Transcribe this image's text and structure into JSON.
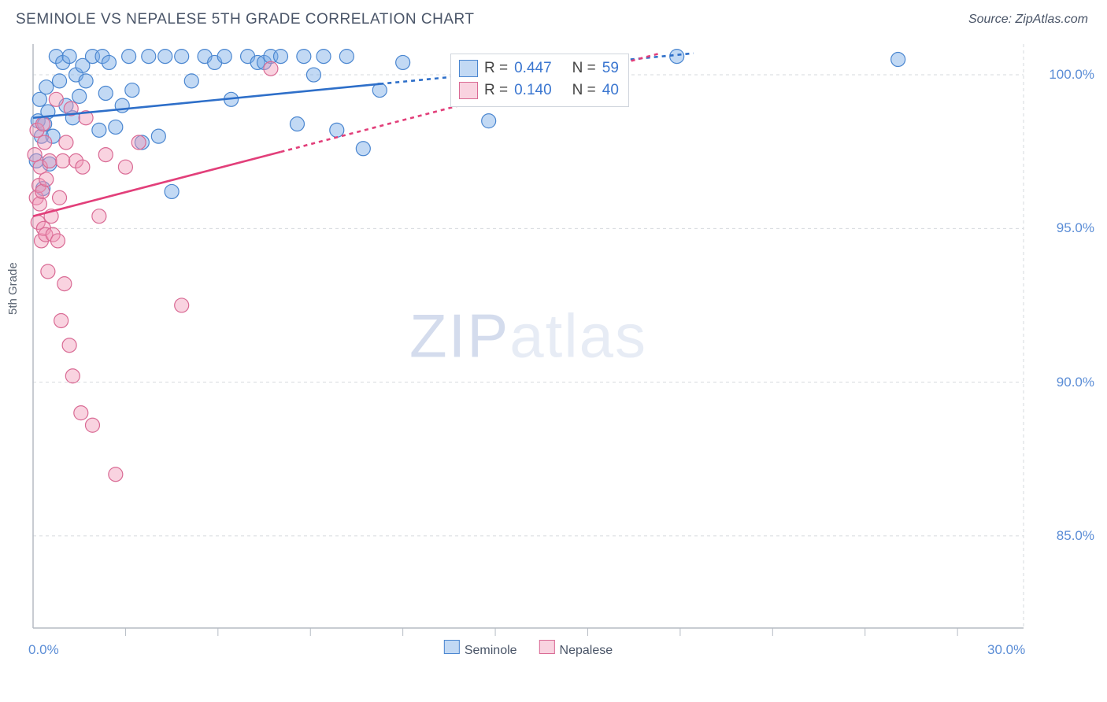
{
  "header": {
    "title": "SEMINOLE VS NEPALESE 5TH GRADE CORRELATION CHART",
    "source": "Source: ZipAtlas.com"
  },
  "watermark": {
    "zip": "ZIP",
    "atlas": "atlas"
  },
  "chart": {
    "type": "scatter",
    "ylabel": "5th Grade",
    "xlim": [
      0,
      30
    ],
    "ylim": [
      82,
      101
    ],
    "x_ticks_major": [
      0,
      30
    ],
    "x_ticks_minor": [
      2.8,
      5.6,
      8.4,
      11.2,
      14.0,
      16.8,
      19.6,
      22.4,
      25.2,
      28.0
    ],
    "x_tick_labels": {
      "0": "0.0%",
      "30": "30.0%"
    },
    "y_ticks": [
      85,
      90,
      95,
      100
    ],
    "y_tick_labels": {
      "85": "85.0%",
      "90": "90.0%",
      "95": "95.0%",
      "100": "100.0%"
    },
    "background_color": "#ffffff",
    "grid_color": "#d6dade",
    "axis_color": "#b6bcc4",
    "marker_radius": 9,
    "marker_stroke_width": 1.2,
    "trend_line_width": 2.6,
    "series": [
      {
        "name": "Seminole",
        "fill": "rgba(120,170,230,0.45)",
        "stroke": "#4a86d0",
        "trend_color": "#2e6fc9",
        "trend_dash_after_x": 10.5,
        "trend": {
          "x1": 0,
          "y1": 98.6,
          "x2": 20,
          "y2": 100.7
        },
        "R": "0.447",
        "N": "59",
        "points": [
          [
            0.1,
            97.2
          ],
          [
            0.15,
            98.5
          ],
          [
            0.2,
            99.2
          ],
          [
            0.25,
            98.0
          ],
          [
            0.3,
            96.3
          ],
          [
            0.35,
            98.4
          ],
          [
            0.4,
            99.6
          ],
          [
            0.45,
            98.8
          ],
          [
            0.5,
            97.1
          ],
          [
            0.6,
            98.0
          ],
          [
            0.7,
            100.6
          ],
          [
            0.8,
            99.8
          ],
          [
            0.9,
            100.4
          ],
          [
            1.0,
            99.0
          ],
          [
            1.1,
            100.6
          ],
          [
            1.2,
            98.6
          ],
          [
            1.3,
            100.0
          ],
          [
            1.4,
            99.3
          ],
          [
            1.5,
            100.3
          ],
          [
            1.6,
            99.8
          ],
          [
            1.8,
            100.6
          ],
          [
            2.0,
            98.2
          ],
          [
            2.1,
            100.6
          ],
          [
            2.2,
            99.4
          ],
          [
            2.3,
            100.4
          ],
          [
            2.5,
            98.3
          ],
          [
            2.7,
            99.0
          ],
          [
            2.9,
            100.6
          ],
          [
            3.0,
            99.5
          ],
          [
            3.3,
            97.8
          ],
          [
            3.5,
            100.6
          ],
          [
            3.8,
            98.0
          ],
          [
            4.0,
            100.6
          ],
          [
            4.2,
            96.2
          ],
          [
            4.5,
            100.6
          ],
          [
            4.8,
            99.8
          ],
          [
            5.2,
            100.6
          ],
          [
            5.5,
            100.4
          ],
          [
            5.8,
            100.6
          ],
          [
            6.0,
            99.2
          ],
          [
            6.5,
            100.6
          ],
          [
            6.8,
            100.4
          ],
          [
            7.0,
            100.4
          ],
          [
            7.2,
            100.6
          ],
          [
            7.5,
            100.6
          ],
          [
            8.0,
            98.4
          ],
          [
            8.2,
            100.6
          ],
          [
            8.5,
            100.0
          ],
          [
            8.8,
            100.6
          ],
          [
            9.2,
            98.2
          ],
          [
            9.5,
            100.6
          ],
          [
            10.0,
            97.6
          ],
          [
            10.5,
            99.5
          ],
          [
            11.2,
            100.4
          ],
          [
            13.0,
            100.2
          ],
          [
            13.8,
            98.5
          ],
          [
            14.3,
            100.2
          ],
          [
            19.5,
            100.6
          ],
          [
            26.2,
            100.5
          ]
        ]
      },
      {
        "name": "Nepalese",
        "fill": "rgba(240,150,180,0.42)",
        "stroke": "#d96a94",
        "trend_color": "#e23f7a",
        "trend_dash_after_x": 7.5,
        "trend": {
          "x1": 0,
          "y1": 95.4,
          "x2": 19,
          "y2": 100.7
        },
        "R": "0.140",
        "N": "40",
        "points": [
          [
            0.05,
            97.4
          ],
          [
            0.1,
            96.0
          ],
          [
            0.12,
            98.2
          ],
          [
            0.15,
            95.2
          ],
          [
            0.18,
            96.4
          ],
          [
            0.2,
            95.8
          ],
          [
            0.22,
            97.0
          ],
          [
            0.25,
            94.6
          ],
          [
            0.28,
            96.2
          ],
          [
            0.3,
            98.4
          ],
          [
            0.32,
            95.0
          ],
          [
            0.35,
            97.8
          ],
          [
            0.38,
            94.8
          ],
          [
            0.4,
            96.6
          ],
          [
            0.45,
            93.6
          ],
          [
            0.5,
            97.2
          ],
          [
            0.55,
            95.4
          ],
          [
            0.6,
            94.8
          ],
          [
            0.7,
            99.2
          ],
          [
            0.75,
            94.6
          ],
          [
            0.8,
            96.0
          ],
          [
            0.85,
            92.0
          ],
          [
            0.9,
            97.2
          ],
          [
            0.95,
            93.2
          ],
          [
            1.0,
            97.8
          ],
          [
            1.1,
            91.2
          ],
          [
            1.15,
            98.9
          ],
          [
            1.2,
            90.2
          ],
          [
            1.3,
            97.2
          ],
          [
            1.45,
            89.0
          ],
          [
            1.5,
            97.0
          ],
          [
            1.6,
            98.6
          ],
          [
            1.8,
            88.6
          ],
          [
            2.0,
            95.4
          ],
          [
            2.2,
            97.4
          ],
          [
            2.5,
            87.0
          ],
          [
            2.8,
            97.0
          ],
          [
            3.2,
            97.8
          ],
          [
            4.5,
            92.5
          ],
          [
            7.2,
            100.2
          ]
        ]
      }
    ],
    "legend_top": {
      "rows": [
        {
          "swatch": 0,
          "r_label": "R =",
          "r_val": "0.447",
          "n_label": "N =",
          "n_val": "59"
        },
        {
          "swatch": 1,
          "r_label": "R =",
          "r_val": "0.140",
          "n_label": "N =",
          "n_val": "40"
        }
      ]
    },
    "legend_bottom": [
      {
        "swatch": 0,
        "label": "Seminole"
      },
      {
        "swatch": 1,
        "label": "Nepalese"
      }
    ]
  }
}
